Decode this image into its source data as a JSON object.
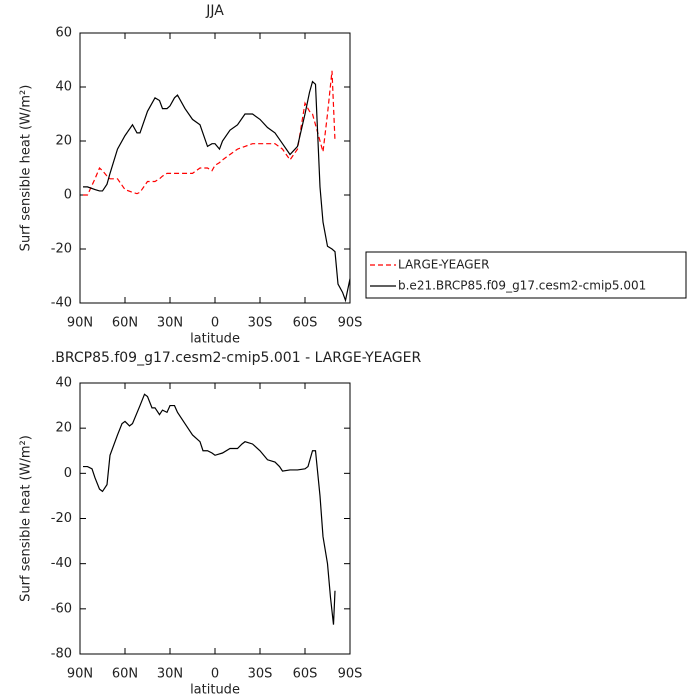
{
  "chart_data": [
    {
      "type": "line",
      "title": "JJA",
      "xlabel": "latitude",
      "ylabel": "Surf sensible heat (W/m²)",
      "x": [
        88,
        85,
        80,
        77,
        75,
        72,
        70,
        65,
        60,
        55,
        52,
        50,
        45,
        40,
        37,
        35,
        32,
        30,
        27,
        25,
        20,
        15,
        10,
        5,
        2,
        0,
        -3,
        -5,
        -10,
        -15,
        -20,
        -25,
        -30,
        -35,
        -40,
        -45,
        -50,
        -55,
        -60,
        -63,
        -65,
        -67,
        -70,
        -72,
        -75,
        -78,
        -80,
        -82,
        -85,
        -87,
        -90
      ],
      "xlim": [
        90,
        -90
      ],
      "xticks": [
        {
          "value": 90,
          "label": "90N"
        },
        {
          "value": 60,
          "label": "60N"
        },
        {
          "value": 30,
          "label": "30N"
        },
        0,
        {
          "value": -30,
          "label": "30S"
        },
        {
          "value": -60,
          "label": "60S"
        },
        {
          "value": -90,
          "label": "90S"
        }
      ],
      "ylim": [
        -40,
        60
      ],
      "yticks": [
        -40,
        -20,
        0,
        20,
        40,
        60
      ],
      "legend": "right",
      "series": [
        {
          "name": "LARGE-YEAGER",
          "color": "#ff0000",
          "linestyle": "dashed",
          "values": [
            0,
            0,
            6,
            10,
            9,
            7,
            6,
            6,
            2,
            1,
            0.5,
            1,
            5,
            5,
            6,
            7,
            8,
            8,
            8,
            8,
            8,
            8,
            10,
            10,
            9,
            11,
            12,
            13,
            15,
            17,
            18,
            19,
            19,
            19,
            19,
            17,
            13,
            17,
            34,
            31,
            30,
            26,
            20,
            16,
            30,
            46,
            20,
            null,
            null,
            null,
            null
          ]
        },
        {
          "name": "b.e21.BRCP85.f09_g17.cesm2-cmip5.001",
          "color": "#000000",
          "linestyle": "solid",
          "values": [
            3,
            3,
            2,
            1.5,
            1.5,
            4,
            8,
            17,
            22,
            26,
            23,
            23,
            31,
            36,
            35,
            32,
            32,
            33,
            36,
            37,
            32,
            28,
            26,
            18,
            19,
            19,
            17,
            20,
            24,
            26,
            30,
            30,
            28,
            25,
            23,
            19,
            15,
            18,
            30,
            38,
            42,
            41,
            3,
            -10,
            -19,
            -20,
            -21,
            -33,
            -36,
            -39,
            -31
          ]
        }
      ]
    },
    {
      "type": "line",
      "title": ".BRCP85.f09_g17.cesm2-cmip5.001 - LARGE-YEAGER",
      "xlabel": "latitude",
      "ylabel": "Surf sensible heat (W/m²)",
      "x": [
        88,
        85,
        82,
        80,
        77,
        75,
        72,
        70,
        65,
        62,
        60,
        57,
        55,
        50,
        47,
        45,
        42,
        40,
        37,
        35,
        32,
        30,
        27,
        25,
        20,
        15,
        10,
        8,
        5,
        2,
        0,
        -5,
        -10,
        -15,
        -18,
        -20,
        -25,
        -30,
        -35,
        -40,
        -43,
        -45,
        -50,
        -55,
        -60,
        -62,
        -65,
        -67,
        -70,
        -72,
        -75,
        -77,
        -79,
        -80
      ],
      "xlim": [
        90,
        -90
      ],
      "xticks": [
        {
          "value": 90,
          "label": "90N"
        },
        {
          "value": 60,
          "label": "60N"
        },
        {
          "value": 30,
          "label": "30N"
        },
        0,
        {
          "value": -30,
          "label": "30S"
        },
        {
          "value": -60,
          "label": "60S"
        },
        {
          "value": -90,
          "label": "90S"
        }
      ],
      "ylim": [
        -80,
        40
      ],
      "yticks": [
        -80,
        -60,
        -40,
        -20,
        0,
        20,
        40
      ],
      "series": [
        {
          "color": "#000000",
          "linestyle": "solid",
          "values": [
            3,
            3,
            2,
            -2,
            -7,
            -8,
            -5,
            8,
            17,
            22,
            23,
            21,
            22,
            30,
            35,
            34,
            29,
            29,
            26,
            28,
            27,
            30,
            30,
            27,
            22,
            17,
            14,
            10,
            10,
            9,
            8,
            9,
            11,
            11,
            13,
            14,
            13,
            10,
            6,
            5,
            3,
            1,
            1.5,
            1.5,
            2,
            3,
            10,
            10,
            -10,
            -28,
            -40,
            -55,
            -67,
            -52
          ]
        }
      ]
    }
  ]
}
